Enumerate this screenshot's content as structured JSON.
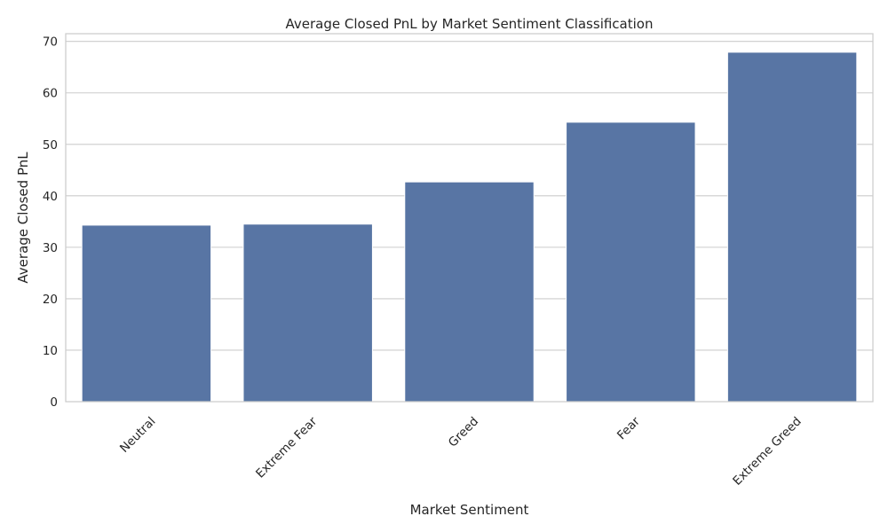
{
  "chart_data": {
    "type": "bar",
    "title": "Average Closed PnL by Market Sentiment Classification",
    "xlabel": "Market Sentiment",
    "ylabel": "Average Closed PnL",
    "categories": [
      "Neutral",
      "Extreme Fear",
      "Greed",
      "Fear",
      "Extreme Greed"
    ],
    "values": [
      34.3,
      34.5,
      42.7,
      54.3,
      67.9
    ],
    "ylim": [
      0,
      71.5
    ],
    "yticks": [
      0,
      10,
      20,
      30,
      40,
      50,
      60,
      70
    ],
    "grid": "horizontal",
    "bar_color": "#5875a4",
    "grid_color": "#cccccc",
    "x_tick_rotation": 45
  }
}
